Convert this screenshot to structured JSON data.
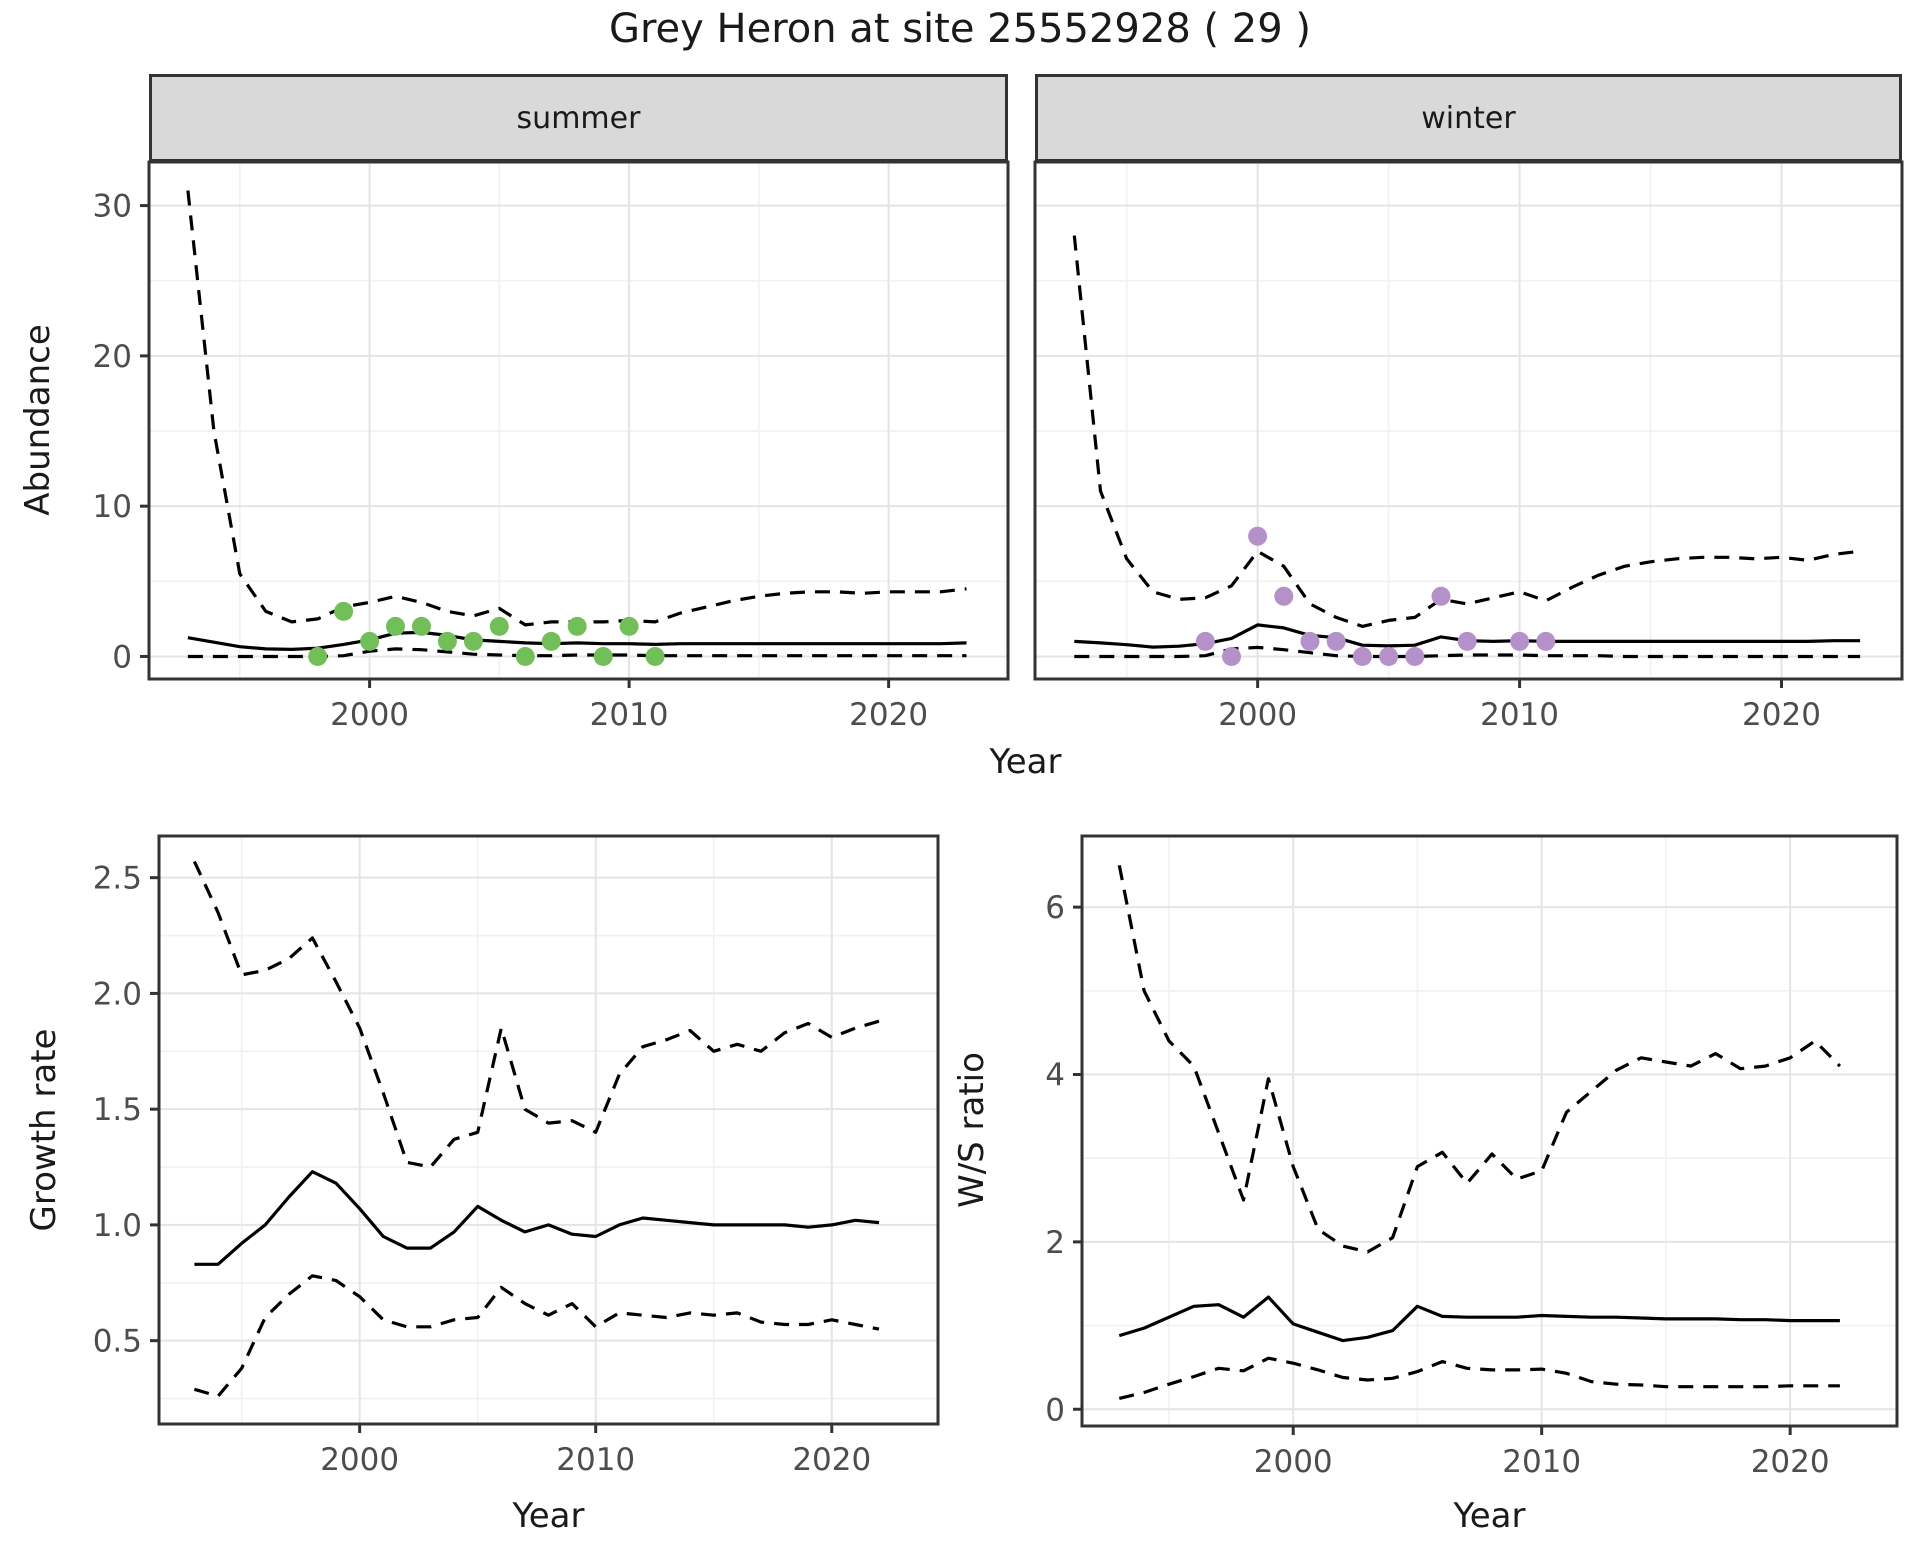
{
  "title": "Grey Heron at site 25552928 ( 29 )",
  "colors": {
    "summer_points": "#72bf5a",
    "winter_points": "#b491c8",
    "line": "#000000",
    "axis_text": "#4d4d4d",
    "axis_title": "#1a1a1a",
    "strip_bg": "#d9d9d9",
    "panel_border": "#333333",
    "grid_major": "#e4e4e4",
    "grid_minor": "#f1f1f1",
    "panel_bg": "#ffffff"
  },
  "chart_data": [
    {
      "type": "line",
      "id": "abundance",
      "facet_labels": [
        "summer",
        "winter"
      ],
      "xlabel": "Year",
      "ylabel": "Abundance",
      "xlim": [
        1991.5,
        2024.6
      ],
      "ylim": [
        -1.5,
        32.9
      ],
      "xticks": [
        2000,
        2010,
        2020
      ],
      "xtick_labels": [
        "2000",
        "2010",
        "2020"
      ],
      "xticks_minor": [
        1995,
        2005,
        2015
      ],
      "yticks": [
        0,
        10,
        20,
        30
      ],
      "ytick_labels": [
        "0",
        "10",
        "20",
        "30"
      ],
      "yticks_minor": [
        5,
        15,
        25
      ],
      "grid": true,
      "legend": "none",
      "x": [
        1993,
        1994,
        1995,
        1996,
        1997,
        1998,
        1999,
        2000,
        2001,
        2002,
        2003,
        2004,
        2005,
        2006,
        2007,
        2008,
        2009,
        2010,
        2011,
        2012,
        2013,
        2014,
        2015,
        2016,
        2017,
        2018,
        2019,
        2020,
        2021,
        2022,
        2023
      ],
      "series": [
        {
          "name": "summer-median",
          "facet": "summer",
          "style": "solid",
          "values": [
            1.25,
            0.95,
            0.65,
            0.5,
            0.47,
            0.55,
            0.8,
            1.1,
            1.55,
            1.6,
            1.4,
            1.1,
            1.0,
            0.9,
            0.85,
            0.9,
            0.85,
            0.85,
            0.8,
            0.85,
            0.85,
            0.85,
            0.85,
            0.85,
            0.85,
            0.85,
            0.85,
            0.85,
            0.85,
            0.85,
            0.9
          ]
        },
        {
          "name": "summer-upper-ci",
          "facet": "summer",
          "style": "dashed",
          "values": [
            31,
            15,
            5.5,
            3.0,
            2.3,
            2.5,
            3.3,
            3.6,
            4.0,
            3.6,
            3.0,
            2.7,
            3.2,
            2.1,
            2.3,
            2.3,
            2.3,
            2.4,
            2.3,
            2.9,
            3.3,
            3.7,
            4.0,
            4.2,
            4.3,
            4.3,
            4.2,
            4.3,
            4.3,
            4.3,
            4.5
          ]
        },
        {
          "name": "summer-lower-ci",
          "facet": "summer",
          "style": "dashed",
          "values": [
            0,
            0,
            0,
            0,
            0,
            0,
            0.05,
            0.35,
            0.5,
            0.45,
            0.3,
            0.15,
            0.1,
            0.05,
            0.05,
            0.1,
            0.1,
            0.1,
            0.05,
            0.05,
            0.05,
            0.05,
            0.05,
            0.05,
            0.05,
            0.05,
            0.05,
            0.05,
            0.05,
            0.05,
            0.05
          ]
        },
        {
          "name": "winter-median",
          "facet": "winter",
          "style": "solid",
          "values": [
            1.0,
            0.9,
            0.78,
            0.62,
            0.68,
            0.85,
            1.2,
            2.1,
            1.9,
            1.4,
            1.25,
            0.75,
            0.7,
            0.75,
            1.3,
            1.05,
            1.0,
            1.05,
            1.0,
            1.0,
            1.0,
            1.0,
            1.0,
            1.0,
            1.0,
            1.0,
            1.0,
            1.0,
            1.0,
            1.05,
            1.05
          ]
        },
        {
          "name": "winter-upper-ci",
          "facet": "winter",
          "style": "dashed",
          "values": [
            28,
            11,
            6.5,
            4.3,
            3.8,
            3.9,
            4.7,
            7.0,
            6.0,
            3.5,
            2.6,
            2.0,
            2.4,
            2.6,
            3.8,
            3.5,
            3.9,
            4.3,
            3.7,
            4.6,
            5.4,
            6.0,
            6.3,
            6.5,
            6.6,
            6.6,
            6.5,
            6.6,
            6.4,
            6.8,
            7.0
          ]
        },
        {
          "name": "winter-lower-ci",
          "facet": "winter",
          "style": "dashed",
          "values": [
            0,
            0,
            0,
            0,
            0,
            0.05,
            0.5,
            0.6,
            0.45,
            0.25,
            0.05,
            0,
            0,
            0,
            0.05,
            0.1,
            0.1,
            0.1,
            0.05,
            0.05,
            0.05,
            0,
            0,
            0,
            0,
            0,
            0,
            0,
            0,
            0,
            0
          ]
        }
      ],
      "observations": [
        {
          "name": "summer-observations",
          "facet": "summer",
          "color_key": "summer_points",
          "years": [
            1998,
            1999,
            2000,
            2001,
            2002,
            2003,
            2004,
            2005,
            2006,
            2007,
            2008,
            2009,
            2010,
            2011
          ],
          "values": [
            0,
            3,
            1,
            2,
            2,
            1,
            1,
            2,
            0,
            1,
            2,
            0,
            2,
            0
          ]
        },
        {
          "name": "winter-observations",
          "facet": "winter",
          "color_key": "winter_points",
          "years": [
            1998,
            1999,
            2000,
            2001,
            2002,
            2003,
            2004,
            2005,
            2006,
            2007,
            2008,
            2010,
            2011
          ],
          "values": [
            1,
            0,
            8,
            4,
            1,
            1,
            0,
            0,
            0,
            4,
            1,
            1,
            1
          ]
        }
      ]
    },
    {
      "type": "line",
      "id": "growth_rate",
      "xlabel": "Year",
      "ylabel": "Growth rate",
      "xlim": [
        1991.5,
        2024.5
      ],
      "ylim": [
        0.14,
        2.68
      ],
      "xticks": [
        2000,
        2010,
        2020
      ],
      "xtick_labels": [
        "2000",
        "2010",
        "2020"
      ],
      "xticks_minor": [
        1995,
        2005,
        2015
      ],
      "yticks": [
        0.5,
        1.0,
        1.5,
        2.0,
        2.5
      ],
      "ytick_labels": [
        "0.5",
        "1.0",
        "1.5",
        "2.0",
        "2.5"
      ],
      "yticks_minor": [
        0.25,
        0.75,
        1.25,
        1.75,
        2.25
      ],
      "grid": true,
      "legend": "none",
      "x": [
        1993,
        1994,
        1995,
        1996,
        1997,
        1998,
        1999,
        2000,
        2001,
        2002,
        2003,
        2004,
        2005,
        2006,
        2007,
        2008,
        2009,
        2010,
        2011,
        2012,
        2013,
        2014,
        2015,
        2016,
        2017,
        2018,
        2019,
        2020,
        2021,
        2022
      ],
      "series": [
        {
          "name": "growth-median",
          "style": "solid",
          "values": [
            0.83,
            0.83,
            0.92,
            1.0,
            1.12,
            1.23,
            1.18,
            1.07,
            0.95,
            0.9,
            0.9,
            0.97,
            1.08,
            1.02,
            0.97,
            1.0,
            0.96,
            0.95,
            1.0,
            1.03,
            1.02,
            1.01,
            1.0,
            1.0,
            1.0,
            1.0,
            0.99,
            1.0,
            1.02,
            1.01
          ]
        },
        {
          "name": "growth-upper-ci",
          "style": "dashed",
          "values": [
            2.57,
            2.35,
            2.08,
            2.1,
            2.15,
            2.24,
            2.05,
            1.85,
            1.57,
            1.27,
            1.25,
            1.37,
            1.4,
            1.85,
            1.5,
            1.44,
            1.45,
            1.4,
            1.65,
            1.77,
            1.8,
            1.84,
            1.75,
            1.78,
            1.75,
            1.83,
            1.87,
            1.81,
            1.85,
            1.88
          ]
        },
        {
          "name": "growth-lower-ci",
          "style": "dashed",
          "values": [
            0.29,
            0.26,
            0.38,
            0.6,
            0.7,
            0.78,
            0.76,
            0.69,
            0.59,
            0.56,
            0.56,
            0.59,
            0.6,
            0.73,
            0.66,
            0.61,
            0.66,
            0.56,
            0.62,
            0.61,
            0.6,
            0.62,
            0.61,
            0.62,
            0.58,
            0.57,
            0.57,
            0.59,
            0.57,
            0.55
          ]
        }
      ]
    },
    {
      "type": "line",
      "id": "ws_ratio",
      "xlabel": "Year",
      "ylabel": "W/S ratio",
      "xlim": [
        1991.5,
        2024.3
      ],
      "ylim": [
        -0.2,
        6.85
      ],
      "xticks": [
        2000,
        2010,
        2020
      ],
      "xtick_labels": [
        "2000",
        "2010",
        "2020"
      ],
      "xticks_minor": [
        1995,
        2005,
        2015
      ],
      "yticks": [
        0,
        2,
        4,
        6
      ],
      "ytick_labels": [
        "0",
        "2",
        "4",
        "6"
      ],
      "yticks_minor": [
        1,
        3,
        5
      ],
      "grid": true,
      "legend": "none",
      "x": [
        1993,
        1994,
        1995,
        1996,
        1997,
        1998,
        1999,
        2000,
        2001,
        2002,
        2003,
        2004,
        2005,
        2006,
        2007,
        2008,
        2009,
        2010,
        2011,
        2012,
        2013,
        2014,
        2015,
        2016,
        2017,
        2018,
        2019,
        2020,
        2021,
        2022
      ],
      "series": [
        {
          "name": "ws-median",
          "style": "solid",
          "values": [
            0.88,
            0.97,
            1.1,
            1.23,
            1.25,
            1.1,
            1.34,
            1.02,
            0.92,
            0.82,
            0.86,
            0.94,
            1.23,
            1.11,
            1.1,
            1.1,
            1.1,
            1.12,
            1.11,
            1.1,
            1.1,
            1.09,
            1.08,
            1.08,
            1.08,
            1.07,
            1.07,
            1.06,
            1.06,
            1.06
          ]
        },
        {
          "name": "ws-upper-ci",
          "style": "dashed",
          "values": [
            6.5,
            5.0,
            4.4,
            4.1,
            3.3,
            2.5,
            3.95,
            2.9,
            2.15,
            1.95,
            1.88,
            2.05,
            2.9,
            3.07,
            2.7,
            3.05,
            2.75,
            2.85,
            3.55,
            3.8,
            4.05,
            4.2,
            4.15,
            4.1,
            4.25,
            4.07,
            4.1,
            4.2,
            4.4,
            4.1
          ]
        },
        {
          "name": "ws-lower-ci",
          "style": "dashed",
          "values": [
            0.13,
            0.2,
            0.3,
            0.39,
            0.49,
            0.46,
            0.61,
            0.55,
            0.47,
            0.38,
            0.35,
            0.37,
            0.45,
            0.57,
            0.49,
            0.47,
            0.47,
            0.48,
            0.43,
            0.33,
            0.3,
            0.29,
            0.27,
            0.27,
            0.27,
            0.27,
            0.27,
            0.28,
            0.28,
            0.28
          ]
        }
      ]
    }
  ]
}
